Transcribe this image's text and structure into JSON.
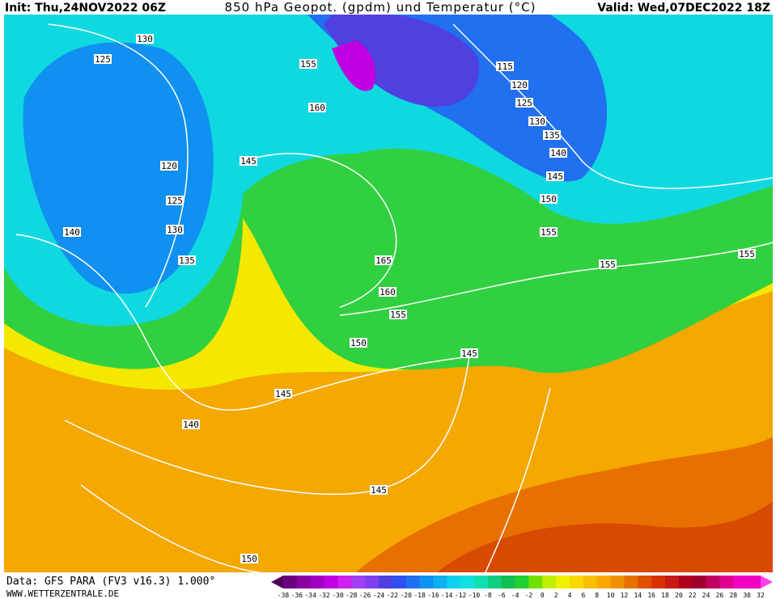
{
  "header": {
    "init": "Init: Thu,24NOV2022 06Z",
    "title": "850 hPa Geopot. (gpdm) und Temperatur (°C)",
    "valid": "Valid: Wed,07DEC2022 18Z"
  },
  "map": {
    "contour_labels": [
      130,
      125,
      120,
      125,
      130,
      135,
      140,
      145,
      155,
      160,
      165,
      160,
      155,
      150,
      145,
      140,
      145,
      145,
      150,
      115,
      120,
      125,
      130,
      135,
      140,
      145,
      150,
      155,
      155,
      155
    ]
  },
  "legend": {
    "labels": [
      -38,
      -36,
      -34,
      -32,
      -30,
      -28,
      -26,
      -24,
      -22,
      -20,
      -18,
      -16,
      -14,
      -12,
      -10,
      -8,
      -6,
      -4,
      -2,
      0,
      2,
      4,
      6,
      8,
      10,
      12,
      14,
      16,
      18,
      20,
      22,
      24,
      26,
      28,
      30,
      32
    ],
    "colors": [
      "#50005a",
      "#6a0080",
      "#8a00a0",
      "#a000c0",
      "#c000e0",
      "#d020f0",
      "#a040f0",
      "#8040f0",
      "#5040e0",
      "#3050f0",
      "#2070f0",
      "#1090f0",
      "#10b0f0",
      "#10d0f0",
      "#10e0e0",
      "#10e0b0",
      "#10d080",
      "#10c050",
      "#20d030",
      "#70e000",
      "#c0f000",
      "#f0f000",
      "#f8d800",
      "#f8c000",
      "#f8a800",
      "#f09000",
      "#e87000",
      "#e05000",
      "#d83000",
      "#c81818",
      "#b00020",
      "#a00030",
      "#c00060",
      "#e00090",
      "#f000c0",
      "#ff40f0"
    ]
  },
  "footer": {
    "source": "Data: GFS PARA (FV3 v16.3) 1.000°",
    "site": "WWW.WETTERZENTRALE.DE"
  }
}
